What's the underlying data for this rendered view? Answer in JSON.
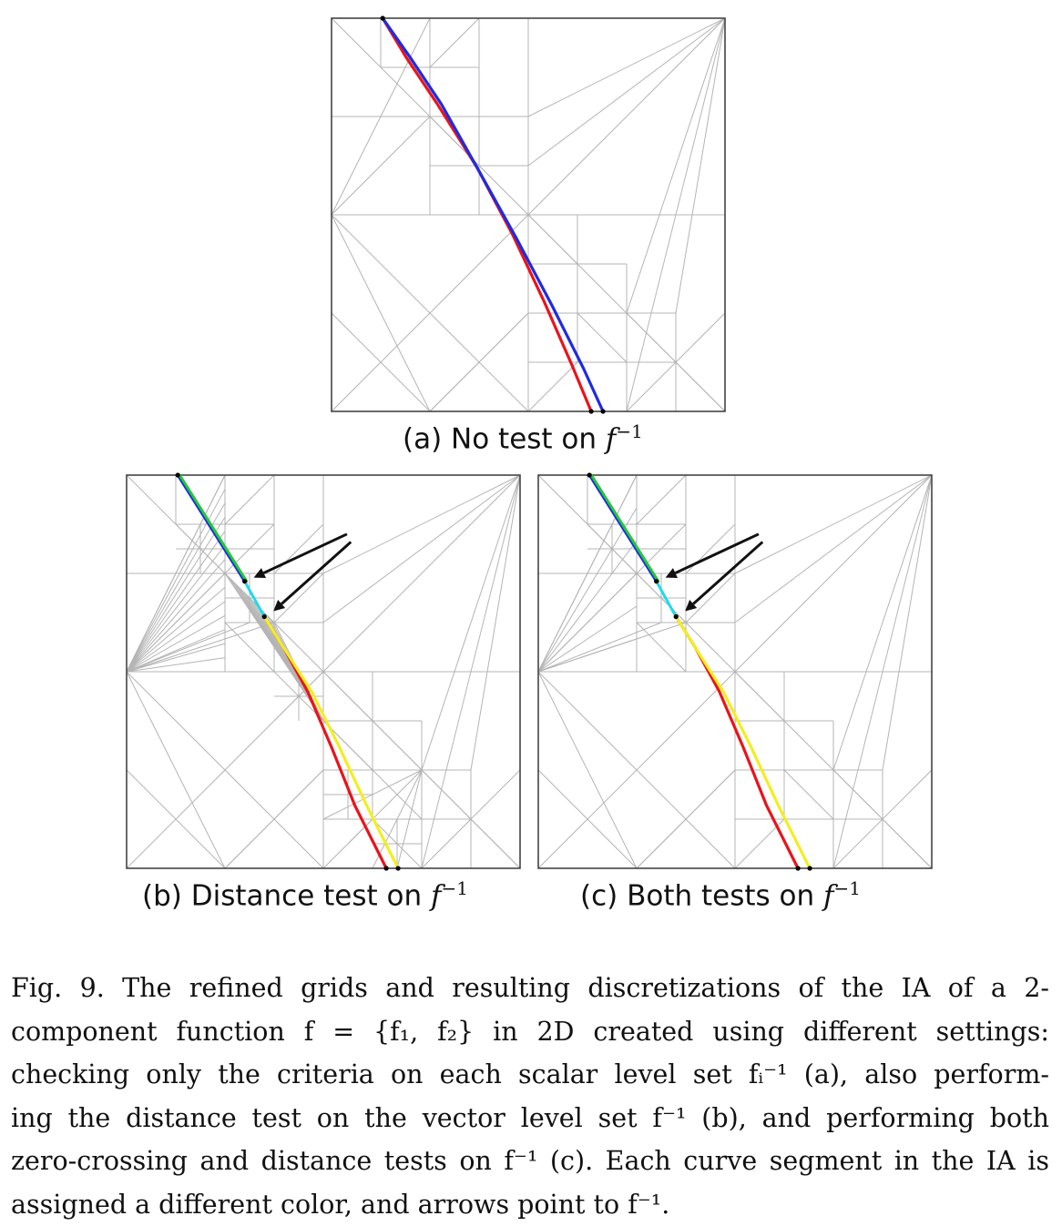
{
  "figure": {
    "panels": [
      {
        "id": "a",
        "label": "(a) No test on ",
        "math": "f",
        "sup": "−1"
      },
      {
        "id": "b",
        "label": "(b) Distance test on ",
        "math": "f",
        "sup": "−1"
      },
      {
        "id": "c",
        "label": "(c) Both tests on ",
        "math": "f",
        "sup": "−1"
      }
    ],
    "colors": {
      "grid": "#b4b4b4",
      "frame": "#444444",
      "red": "#e8141b",
      "blue": "#1f2be0",
      "green": "#22c83a",
      "cyan": "#22d8ec",
      "yellow": "#f2ee22",
      "arrow": "#111111"
    }
  },
  "caption": {
    "lines": [
      "Fig. 9. The refined grids and resulting discretizations of the IA of a 2-",
      "component function f = {f₁, f₂} in 2D created using different settings:",
      "checking only the criteria on each scalar level set fᵢ⁻¹ (a), also perform-",
      "ing the distance test on the vector level set f⁻¹ (b), and performing both",
      "zero-crossing and distance tests on f⁻¹ (c). Each curve segment in the IA is",
      "assigned a different color, and arrows point to f⁻¹."
    ]
  }
}
